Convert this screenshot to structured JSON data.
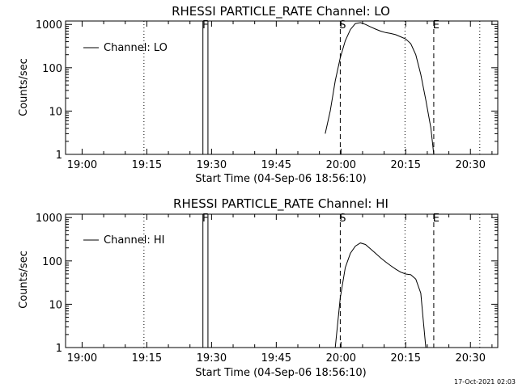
{
  "timestamp": "17-Oct-2021 02:03",
  "colors": {
    "background": "#ffffff",
    "ink": "#000000"
  },
  "chart_data": [
    {
      "type": "line",
      "title": "RHESSI PARTICLE_RATE Channel: LO",
      "xlabel": "Start Time (04-Sep-06 18:56:10)",
      "ylabel": "Counts/sec",
      "yscale": "log",
      "ylim": [
        1,
        1200
      ],
      "xlim": [
        "18:56:10",
        "20:36:20"
      ],
      "x_ticks": [
        "19:00",
        "19:15",
        "19:30",
        "19:45",
        "20:00",
        "20:15",
        "20:30"
      ],
      "y_ticks": [
        "1",
        "10",
        "100",
        "1000"
      ],
      "legend": {
        "position": "top-left",
        "entries": [
          "Channel: LO"
        ]
      },
      "markers": [
        {
          "label": "F",
          "time": "19:28:00",
          "style": "solid"
        },
        {
          "label": "",
          "time": "19:29:10",
          "style": "solid"
        },
        {
          "label": "S",
          "time": "19:59:50",
          "style": "dashed"
        },
        {
          "label": "E",
          "time": "20:21:30",
          "style": "dashed"
        },
        {
          "label": "",
          "time": "19:14:20",
          "style": "dotted"
        },
        {
          "label": "",
          "time": "20:14:50",
          "style": "dotted"
        },
        {
          "label": "",
          "time": "20:32:10",
          "style": "dotted"
        }
      ],
      "series": [
        {
          "name": "Channel: LO",
          "x": [
            "19:56:20",
            "19:57:30",
            "19:58:40",
            "19:59:50",
            "20:01:00",
            "20:02:10",
            "20:03:20",
            "20:04:30",
            "20:05:40",
            "20:06:50",
            "20:08:00",
            "20:09:10",
            "20:10:20",
            "20:11:30",
            "20:12:40",
            "20:13:50",
            "20:15:00",
            "20:16:10",
            "20:17:20",
            "20:18:30",
            "20:19:40",
            "20:20:50",
            "20:21:30"
          ],
          "values": [
            3,
            10,
            50,
            170,
            420,
            760,
            1050,
            1100,
            1000,
            880,
            780,
            700,
            650,
            620,
            580,
            520,
            460,
            360,
            200,
            70,
            18,
            4,
            1
          ]
        }
      ]
    },
    {
      "type": "line",
      "title": "RHESSI PARTICLE_RATE Channel: HI",
      "xlabel": "Start Time (04-Sep-06 18:56:10)",
      "ylabel": "Counts/sec",
      "yscale": "log",
      "ylim": [
        1,
        1200
      ],
      "xlim": [
        "18:56:10",
        "20:36:20"
      ],
      "x_ticks": [
        "19:00",
        "19:15",
        "19:30",
        "19:45",
        "20:00",
        "20:15",
        "20:30"
      ],
      "y_ticks": [
        "1",
        "10",
        "100",
        "1000"
      ],
      "legend": {
        "position": "top-left",
        "entries": [
          "Channel: HI"
        ]
      },
      "markers": [
        {
          "label": "F",
          "time": "19:28:00",
          "style": "solid"
        },
        {
          "label": "",
          "time": "19:29:10",
          "style": "solid"
        },
        {
          "label": "S",
          "time": "19:59:50",
          "style": "dashed"
        },
        {
          "label": "E",
          "time": "20:21:30",
          "style": "dashed"
        },
        {
          "label": "",
          "time": "19:14:20",
          "style": "dotted"
        },
        {
          "label": "",
          "time": "20:14:50",
          "style": "dotted"
        },
        {
          "label": "",
          "time": "20:32:10",
          "style": "dotted"
        }
      ],
      "series": [
        {
          "name": "Channel: HI",
          "x": [
            "19:58:40",
            "19:59:50",
            "20:01:00",
            "20:02:10",
            "20:03:20",
            "20:04:30",
            "20:05:40",
            "20:06:50",
            "20:08:00",
            "20:09:10",
            "20:10:20",
            "20:11:30",
            "20:12:40",
            "20:13:50",
            "20:15:00",
            "20:16:10",
            "20:17:20",
            "20:18:30",
            "20:19:00",
            "20:19:40"
          ],
          "values": [
            1,
            14,
            70,
            150,
            220,
            260,
            240,
            190,
            150,
            118,
            95,
            78,
            65,
            55,
            50,
            48,
            38,
            18,
            5,
            1
          ]
        }
      ]
    }
  ]
}
